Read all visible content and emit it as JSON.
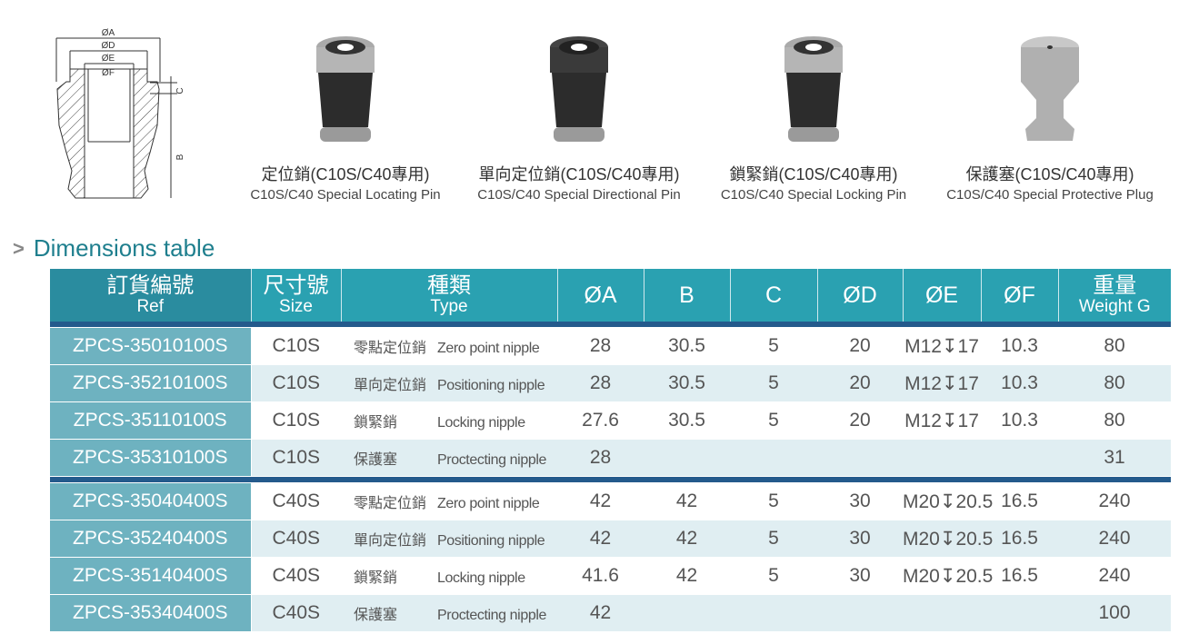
{
  "drawing": {
    "labels": {
      "a": "ØA",
      "d": "ØD",
      "e": "ØE",
      "f": "ØF",
      "b": "B",
      "c": "C"
    }
  },
  "products": [
    {
      "zh": "定位銷(C10S/C40專用)",
      "en": "C10S/C40 Special Locating Pin",
      "style": "dark-ring"
    },
    {
      "zh": "單向定位銷(C10S/C40專用)",
      "en": "C10S/C40 Special Directional Pin",
      "style": "dark"
    },
    {
      "zh": "鎖緊銷(C10S/C40專用)",
      "en": "C10S/C40 Special Locking Pin",
      "style": "dark-ring"
    },
    {
      "zh": "保護塞(C10S/C40專用)",
      "en": "C10S/C40 Special Protective Plug",
      "style": "silver"
    }
  ],
  "section_title": "Dimensions table",
  "colors": {
    "header": "#2aa1b1",
    "header_ref": "#2a8c9f",
    "ref_cell": "#6eb2c0",
    "row_alt": "#e0eef2",
    "divider": "#245a8c",
    "title": "#1f7f8e"
  },
  "table": {
    "headers": [
      {
        "zh": "訂貨編號",
        "en": "Ref"
      },
      {
        "zh": "尺寸號",
        "en": "Size"
      },
      {
        "zh": "種類",
        "en": "Type"
      },
      {
        "label": "ØA"
      },
      {
        "label": "B"
      },
      {
        "label": "C"
      },
      {
        "label": "ØD"
      },
      {
        "label": "ØE"
      },
      {
        "label": "ØF"
      },
      {
        "zh": "重量",
        "en": "Weight G"
      }
    ],
    "rows": [
      {
        "ref": "ZPCS-35010100S",
        "size": "C10S",
        "type_zh": "零點定位銷",
        "type_en": "Zero point nipple",
        "a": "28",
        "b": "30.5",
        "c": "5",
        "d": "20",
        "e": "M12↧17",
        "f": "10.3",
        "w": "80"
      },
      {
        "ref": "ZPCS-35210100S",
        "size": "C10S",
        "type_zh": "單向定位銷",
        "type_en": "Positioning nipple",
        "a": "28",
        "b": "30.5",
        "c": "5",
        "d": "20",
        "e": "M12↧17",
        "f": "10.3",
        "w": "80"
      },
      {
        "ref": "ZPCS-35110100S",
        "size": "C10S",
        "type_zh": "鎖緊銷",
        "type_en": "Locking nipple",
        "a": "27.6",
        "b": "30.5",
        "c": "5",
        "d": "20",
        "e": "M12↧17",
        "f": "10.3",
        "w": "80"
      },
      {
        "ref": "ZPCS-35310100S",
        "size": "C10S",
        "type_zh": "保護塞",
        "type_en": "Proctecting nipple",
        "a": "28",
        "b": "",
        "c": "",
        "d": "",
        "e": "",
        "f": "",
        "w": "31"
      },
      {
        "ref": "ZPCS-35040400S",
        "size": "C40S",
        "type_zh": "零點定位銷",
        "type_en": "Zero point nipple",
        "a": "42",
        "b": "42",
        "c": "5",
        "d": "30",
        "e": "M20↧20.5",
        "f": "16.5",
        "w": "240"
      },
      {
        "ref": "ZPCS-35240400S",
        "size": "C40S",
        "type_zh": "單向定位銷",
        "type_en": "Positioning nipple",
        "a": "42",
        "b": "42",
        "c": "5",
        "d": "30",
        "e": "M20↧20.5",
        "f": "16.5",
        "w": "240"
      },
      {
        "ref": "ZPCS-35140400S",
        "size": "C40S",
        "type_zh": "鎖緊銷",
        "type_en": "Locking nipple",
        "a": "41.6",
        "b": "42",
        "c": "5",
        "d": "30",
        "e": "M20↧20.5",
        "f": "16.5",
        "w": "240"
      },
      {
        "ref": "ZPCS-35340400S",
        "size": "C40S",
        "type_zh": "保護塞",
        "type_en": "Proctecting nipple",
        "a": "42",
        "b": "",
        "c": "",
        "d": "",
        "e": "",
        "f": "",
        "w": "100"
      }
    ]
  }
}
